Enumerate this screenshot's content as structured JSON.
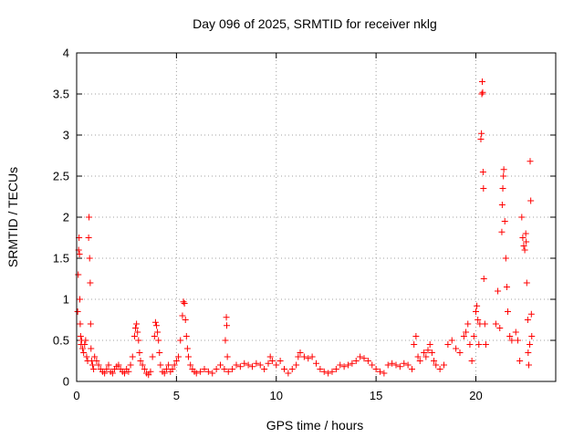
{
  "chart_data": {
    "type": "scatter",
    "title": "Day 096 of 2025, SRMTID for receiver nklg",
    "xlabel": "GPS time / hours",
    "ylabel": "SRMTID / TECUs",
    "xlim": [
      0,
      24
    ],
    "ylim": [
      0,
      4
    ],
    "xticks": [
      0,
      5,
      10,
      15,
      20
    ],
    "xtick_labels": [
      "0",
      "5",
      "10",
      "15",
      "20"
    ],
    "yticks": [
      0,
      0.5,
      1,
      1.5,
      2,
      2.5,
      3,
      3.5,
      4
    ],
    "ytick_labels": [
      "0",
      "0.5",
      "1",
      "1.5",
      "2",
      "2.5",
      "3",
      "3.5",
      "4"
    ],
    "grid": true,
    "marker": "+",
    "color": "#ff0000",
    "series": [
      {
        "name": "SRMTID",
        "points": [
          [
            0.05,
            0.85
          ],
          [
            0.08,
            1.3
          ],
          [
            0.1,
            1.6
          ],
          [
            0.12,
            1.75
          ],
          [
            0.14,
            1.55
          ],
          [
            0.16,
            1.0
          ],
          [
            0.18,
            0.7
          ],
          [
            0.2,
            0.55
          ],
          [
            0.22,
            0.45
          ],
          [
            0.25,
            0.5
          ],
          [
            0.3,
            0.4
          ],
          [
            0.35,
            0.35
          ],
          [
            0.4,
            0.45
          ],
          [
            0.45,
            0.5
          ],
          [
            0.5,
            0.3
          ],
          [
            0.55,
            0.25
          ],
          [
            0.6,
            1.75
          ],
          [
            0.62,
            2.0
          ],
          [
            0.65,
            1.5
          ],
          [
            0.68,
            1.2
          ],
          [
            0.7,
            0.7
          ],
          [
            0.72,
            0.4
          ],
          [
            0.75,
            0.25
          ],
          [
            0.8,
            0.2
          ],
          [
            0.85,
            0.15
          ],
          [
            0.9,
            0.3
          ],
          [
            1.0,
            0.25
          ],
          [
            1.1,
            0.2
          ],
          [
            1.2,
            0.15
          ],
          [
            1.3,
            0.12
          ],
          [
            1.4,
            0.1
          ],
          [
            1.5,
            0.15
          ],
          [
            1.6,
            0.2
          ],
          [
            1.7,
            0.12
          ],
          [
            1.8,
            0.1
          ],
          [
            1.9,
            0.15
          ],
          [
            2.0,
            0.18
          ],
          [
            2.1,
            0.2
          ],
          [
            2.2,
            0.15
          ],
          [
            2.3,
            0.12
          ],
          [
            2.4,
            0.1
          ],
          [
            2.5,
            0.15
          ],
          [
            2.6,
            0.12
          ],
          [
            2.7,
            0.2
          ],
          [
            2.8,
            0.3
          ],
          [
            2.9,
            0.55
          ],
          [
            2.95,
            0.65
          ],
          [
            3.0,
            0.7
          ],
          [
            3.05,
            0.6
          ],
          [
            3.1,
            0.5
          ],
          [
            3.15,
            0.35
          ],
          [
            3.2,
            0.25
          ],
          [
            3.3,
            0.2
          ],
          [
            3.4,
            0.15
          ],
          [
            3.5,
            0.1
          ],
          [
            3.6,
            0.08
          ],
          [
            3.7,
            0.12
          ],
          [
            3.8,
            0.3
          ],
          [
            3.9,
            0.55
          ],
          [
            3.95,
            0.72
          ],
          [
            4.0,
            0.68
          ],
          [
            4.05,
            0.6
          ],
          [
            4.1,
            0.5
          ],
          [
            4.15,
            0.35
          ],
          [
            4.2,
            0.2
          ],
          [
            4.3,
            0.12
          ],
          [
            4.4,
            0.1
          ],
          [
            4.5,
            0.15
          ],
          [
            4.6,
            0.2
          ],
          [
            4.7,
            0.12
          ],
          [
            4.8,
            0.15
          ],
          [
            4.9,
            0.2
          ],
          [
            5.0,
            0.25
          ],
          [
            5.1,
            0.3
          ],
          [
            5.2,
            0.5
          ],
          [
            5.3,
            0.8
          ],
          [
            5.35,
            0.97
          ],
          [
            5.4,
            0.95
          ],
          [
            5.45,
            0.75
          ],
          [
            5.5,
            0.55
          ],
          [
            5.55,
            0.4
          ],
          [
            5.6,
            0.3
          ],
          [
            5.7,
            0.2
          ],
          [
            5.8,
            0.15
          ],
          [
            5.9,
            0.12
          ],
          [
            6.0,
            0.1
          ],
          [
            6.2,
            0.12
          ],
          [
            6.4,
            0.15
          ],
          [
            6.6,
            0.12
          ],
          [
            6.8,
            0.1
          ],
          [
            7.0,
            0.15
          ],
          [
            7.2,
            0.2
          ],
          [
            7.4,
            0.15
          ],
          [
            7.45,
            0.5
          ],
          [
            7.5,
            0.78
          ],
          [
            7.52,
            0.68
          ],
          [
            7.55,
            0.3
          ],
          [
            7.6,
            0.12
          ],
          [
            7.8,
            0.15
          ],
          [
            8.0,
            0.2
          ],
          [
            8.2,
            0.18
          ],
          [
            8.4,
            0.22
          ],
          [
            8.6,
            0.2
          ],
          [
            8.8,
            0.18
          ],
          [
            9.0,
            0.22
          ],
          [
            9.2,
            0.2
          ],
          [
            9.4,
            0.15
          ],
          [
            9.6,
            0.22
          ],
          [
            9.7,
            0.3
          ],
          [
            9.8,
            0.25
          ],
          [
            10.0,
            0.2
          ],
          [
            10.2,
            0.25
          ],
          [
            10.4,
            0.15
          ],
          [
            10.6,
            0.1
          ],
          [
            10.8,
            0.15
          ],
          [
            11.0,
            0.2
          ],
          [
            11.1,
            0.3
          ],
          [
            11.2,
            0.35
          ],
          [
            11.4,
            0.3
          ],
          [
            11.6,
            0.28
          ],
          [
            11.8,
            0.3
          ],
          [
            12.0,
            0.22
          ],
          [
            12.2,
            0.15
          ],
          [
            12.4,
            0.12
          ],
          [
            12.6,
            0.1
          ],
          [
            12.8,
            0.12
          ],
          [
            13.0,
            0.15
          ],
          [
            13.2,
            0.2
          ],
          [
            13.4,
            0.18
          ],
          [
            13.6,
            0.2
          ],
          [
            13.8,
            0.22
          ],
          [
            14.0,
            0.25
          ],
          [
            14.2,
            0.3
          ],
          [
            14.4,
            0.28
          ],
          [
            14.6,
            0.25
          ],
          [
            14.8,
            0.2
          ],
          [
            15.0,
            0.15
          ],
          [
            15.2,
            0.12
          ],
          [
            15.4,
            0.1
          ],
          [
            15.6,
            0.2
          ],
          [
            15.8,
            0.22
          ],
          [
            16.0,
            0.2
          ],
          [
            16.2,
            0.18
          ],
          [
            16.4,
            0.22
          ],
          [
            16.6,
            0.2
          ],
          [
            16.8,
            0.15
          ],
          [
            16.9,
            0.45
          ],
          [
            17.0,
            0.55
          ],
          [
            17.1,
            0.3
          ],
          [
            17.2,
            0.25
          ],
          [
            17.4,
            0.35
          ],
          [
            17.5,
            0.3
          ],
          [
            17.6,
            0.38
          ],
          [
            17.7,
            0.45
          ],
          [
            17.8,
            0.35
          ],
          [
            17.9,
            0.25
          ],
          [
            18.0,
            0.2
          ],
          [
            18.2,
            0.15
          ],
          [
            18.4,
            0.2
          ],
          [
            18.6,
            0.45
          ],
          [
            18.8,
            0.5
          ],
          [
            19.0,
            0.4
          ],
          [
            19.2,
            0.35
          ],
          [
            19.4,
            0.55
          ],
          [
            19.5,
            0.6
          ],
          [
            19.6,
            0.7
          ],
          [
            19.7,
            0.45
          ],
          [
            19.8,
            0.25
          ],
          [
            19.9,
            0.55
          ],
          [
            20.0,
            0.85
          ],
          [
            20.05,
            0.92
          ],
          [
            20.1,
            0.75
          ],
          [
            20.15,
            0.45
          ],
          [
            20.2,
            0.7
          ],
          [
            20.25,
            2.95
          ],
          [
            20.28,
            3.02
          ],
          [
            20.3,
            3.5
          ],
          [
            20.32,
            3.65
          ],
          [
            20.34,
            3.52
          ],
          [
            20.36,
            2.55
          ],
          [
            20.38,
            2.35
          ],
          [
            20.4,
            1.25
          ],
          [
            20.45,
            0.7
          ],
          [
            20.5,
            0.45
          ],
          [
            21.0,
            0.7
          ],
          [
            21.1,
            1.1
          ],
          [
            21.2,
            0.65
          ],
          [
            21.3,
            1.82
          ],
          [
            21.32,
            2.15
          ],
          [
            21.35,
            2.35
          ],
          [
            21.38,
            2.5
          ],
          [
            21.4,
            2.58
          ],
          [
            21.45,
            1.95
          ],
          [
            21.5,
            1.5
          ],
          [
            21.55,
            1.15
          ],
          [
            21.6,
            0.85
          ],
          [
            21.7,
            0.55
          ],
          [
            21.8,
            0.5
          ],
          [
            22.0,
            0.6
          ],
          [
            22.1,
            0.5
          ],
          [
            22.2,
            0.25
          ],
          [
            22.3,
            2.0
          ],
          [
            22.35,
            1.75
          ],
          [
            22.4,
            1.65
          ],
          [
            22.45,
            1.6
          ],
          [
            22.5,
            1.8
          ],
          [
            22.52,
            1.7
          ],
          [
            22.55,
            1.2
          ],
          [
            22.6,
            0.75
          ],
          [
            22.62,
            0.35
          ],
          [
            22.65,
            0.2
          ],
          [
            22.7,
            0.45
          ],
          [
            22.72,
            2.68
          ],
          [
            22.75,
            2.2
          ],
          [
            22.78,
            0.82
          ],
          [
            22.8,
            0.55
          ]
        ]
      }
    ]
  }
}
